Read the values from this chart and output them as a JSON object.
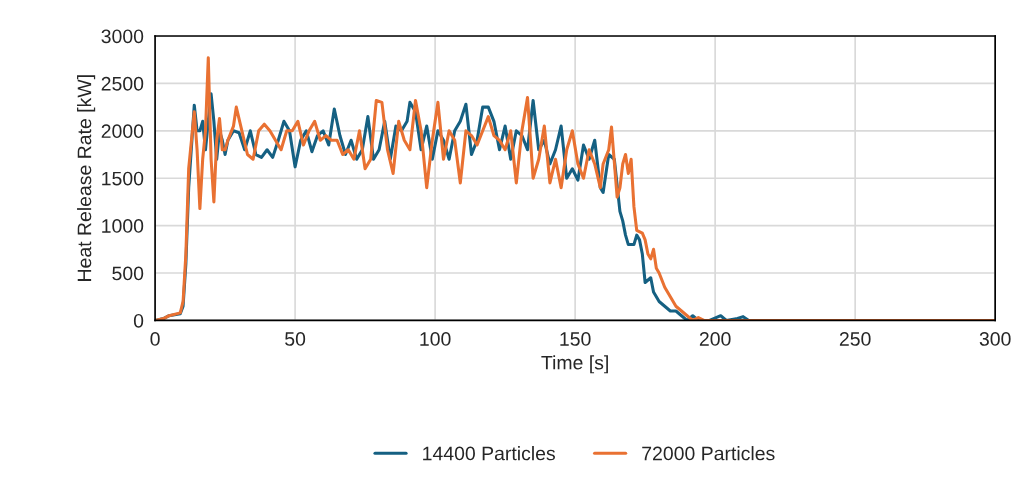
{
  "chart_data": {
    "type": "line",
    "xlabel": "Time [s]",
    "ylabel": "Heat Release Rate [kW]",
    "xlim": [
      0,
      300
    ],
    "xticks": [
      0,
      50,
      100,
      150,
      200,
      250,
      300
    ],
    "ylim": [
      0,
      3000
    ],
    "yticks": [
      0,
      500,
      1000,
      1500,
      2000,
      2500,
      3000
    ],
    "grid": true,
    "legend": "bottom",
    "marker": "none",
    "line_style": "solid",
    "series": [
      {
        "name": "14400 Particles",
        "color": "#156082",
        "x": [
          0,
          3,
          5,
          9,
          10,
          11,
          12,
          14,
          15,
          16,
          17,
          18,
          19,
          20,
          21,
          22,
          23,
          24,
          25,
          26,
          28,
          30,
          32,
          34,
          36,
          38,
          40,
          42,
          44,
          46,
          48,
          50,
          52,
          54,
          56,
          58,
          60,
          62,
          64,
          66,
          68,
          70,
          72,
          74,
          76,
          78,
          80,
          82,
          84,
          86,
          88,
          90,
          91,
          93,
          95,
          97,
          99,
          101,
          103,
          105,
          107,
          109,
          111,
          113,
          115,
          117,
          119,
          121,
          123,
          125,
          127,
          129,
          131,
          133,
          135,
          137,
          139,
          141,
          143,
          145,
          147,
          149,
          151,
          153,
          155,
          157,
          159,
          160,
          162,
          164,
          166,
          167,
          168,
          169,
          171,
          172,
          173,
          174,
          175,
          177,
          178,
          180,
          182,
          184,
          186,
          188,
          190,
          192,
          194,
          198,
          202,
          204,
          208,
          210,
          212,
          300
        ],
        "values": [
          0,
          20,
          50,
          70,
          150,
          600,
          1400,
          2270,
          2000,
          2000,
          2100,
          1800,
          2100,
          2390,
          2100,
          1700,
          2000,
          1900,
          1750,
          1900,
          2000,
          1980,
          1800,
          2000,
          1750,
          1720,
          1800,
          1720,
          1900,
          2100,
          2000,
          1620,
          1900,
          2000,
          1780,
          1950,
          2000,
          1850,
          2230,
          1950,
          1750,
          1900,
          1700,
          1800,
          2150,
          1700,
          1800,
          2100,
          1700,
          2050,
          2000,
          2100,
          2300,
          2200,
          1800,
          2050,
          1700,
          2000,
          1900,
          1700,
          2000,
          2100,
          2280,
          1750,
          1900,
          2250,
          2250,
          2100,
          1800,
          2050,
          1700,
          2000,
          1950,
          1800,
          2320,
          1800,
          1900,
          1650,
          1800,
          2050,
          1500,
          1600,
          1480,
          1850,
          1700,
          1900,
          1400,
          1350,
          1750,
          1700,
          1150,
          1050,
          900,
          800,
          800,
          900,
          850,
          700,
          400,
          450,
          300,
          200,
          150,
          100,
          100,
          50,
          0,
          50,
          0,
          0,
          50,
          0,
          20,
          40,
          0,
          0
        ]
      },
      {
        "name": "72000 Particles",
        "color": "#e97132",
        "x": [
          0,
          3,
          5,
          9,
          10,
          11,
          12,
          14,
          15,
          16,
          17,
          18,
          19,
          20,
          21,
          22,
          23,
          24,
          25,
          26,
          28,
          29,
          31,
          33,
          35,
          37,
          39,
          41,
          43,
          45,
          47,
          49,
          51,
          53,
          55,
          57,
          59,
          61,
          63,
          65,
          67,
          69,
          71,
          73,
          75,
          77,
          79,
          81,
          83,
          85,
          87,
          89,
          91,
          93,
          95,
          97,
          99,
          101,
          103,
          105,
          107,
          109,
          111,
          113,
          115,
          117,
          119,
          121,
          123,
          125,
          127,
          129,
          131,
          133,
          135,
          137,
          139,
          141,
          143,
          145,
          147,
          149,
          151,
          153,
          155,
          157,
          159,
          160,
          162,
          163,
          165,
          166,
          167,
          168,
          169,
          170,
          171,
          172,
          174,
          175,
          176,
          177,
          178,
          179,
          180,
          182,
          184,
          186,
          188,
          190,
          192,
          194,
          196,
          300
        ],
        "values": [
          0,
          20,
          50,
          80,
          200,
          700,
          1600,
          2200,
          1800,
          1180,
          1700,
          2000,
          2770,
          1700,
          1250,
          1900,
          2130,
          1800,
          1800,
          1900,
          2050,
          2250,
          2000,
          1750,
          1700,
          2000,
          2070,
          2000,
          1900,
          1800,
          2000,
          2000,
          2100,
          1850,
          2000,
          2100,
          1900,
          1950,
          1900,
          1900,
          1750,
          1800,
          1700,
          2000,
          1600,
          1700,
          2320,
          2300,
          1800,
          1550,
          2100,
          1900,
          1800,
          2320,
          2000,
          1400,
          1900,
          2300,
          1700,
          2000,
          1900,
          1450,
          2000,
          1950,
          1850,
          2000,
          2150,
          1950,
          1900,
          1800,
          2000,
          1450,
          2000,
          2350,
          1500,
          1700,
          2050,
          1450,
          1700,
          1400,
          1800,
          2000,
          1650,
          1500,
          1800,
          1650,
          1400,
          1650,
          1800,
          2040,
          1300,
          1400,
          1650,
          1750,
          1550,
          1700,
          1200,
          950,
          920,
          850,
          700,
          650,
          750,
          550,
          500,
          350,
          250,
          150,
          100,
          50,
          0,
          30,
          0,
          0
        ]
      }
    ]
  }
}
